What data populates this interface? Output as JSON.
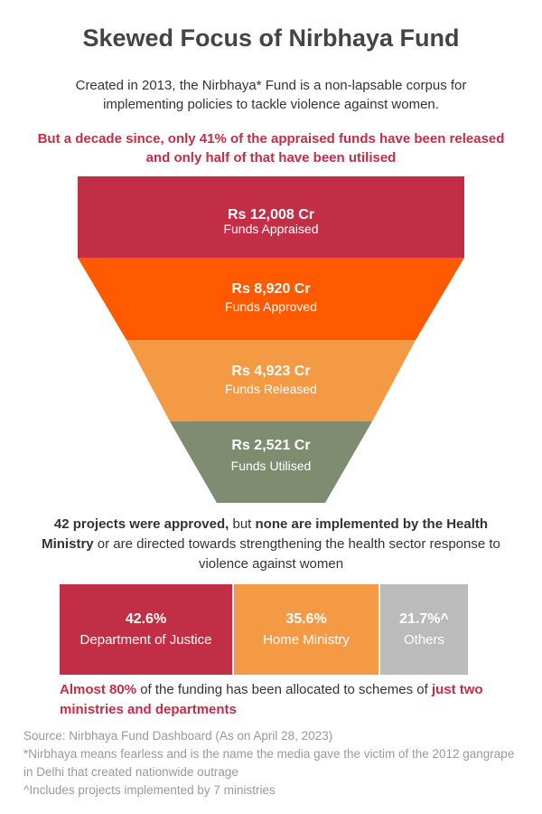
{
  "title": "Skewed Focus of Nirbhaya Fund",
  "intro": "Created in 2013, the Nirbhaya* Fund is a non-lapsable corpus for implementing policies to tackle violence against women.",
  "highlight": "But a decade since, only 41% of the appraised funds have been released and only half of that have been utilised",
  "colors": {
    "crimson": "#c22e45",
    "orange": "#ff5a00",
    "light_orange": "#f49a45",
    "sage": "#7f8c6f",
    "gray": "#bbbbbb",
    "note_gray": "#999999"
  },
  "chart_data": [
    {
      "type": "funnel",
      "stages": [
        {
          "value_text": "Rs 12,008 Cr",
          "label": "Funds Appraised",
          "value": 12008,
          "color": "#c22e45"
        },
        {
          "value_text": "Rs 8,920 Cr",
          "label": "Funds Approved",
          "value": 8920,
          "color": "#ff5a00"
        },
        {
          "value_text": "Rs 4,923 Cr",
          "label": "Funds Released",
          "value": 4923,
          "color": "#f49a45"
        },
        {
          "value_text": "Rs 2,521 Cr",
          "label": "Funds Utilised",
          "value": 2521,
          "color": "#7f8c6f"
        }
      ],
      "unit": "Rs Cr"
    },
    {
      "type": "bar",
      "orientation": "stacked-horizontal",
      "categories": [
        "Department of Justice",
        "Home Ministry",
        "Others"
      ],
      "values": [
        42.6,
        35.6,
        21.7
      ],
      "value_texts": [
        "42.6%",
        "35.6%",
        "21.7%^"
      ],
      "colors": [
        "#c22e45",
        "#f49a45",
        "#bbbbbb"
      ]
    }
  ],
  "projects": {
    "p1": "42 projects were approved,",
    "p2": " but ",
    "p3": "none are implemented by the Health Ministry",
    "p4": " or are directed towards strengthening the health sector response to violence against women"
  },
  "allocation": {
    "a1": "Almost 80%",
    "a2": " of the funding has been allocated to schemes of ",
    "a3": "just two ministries and departments"
  },
  "notes": {
    "source": "Source: Nirbhaya Fund Dashboard (As on April 28, 2023)",
    "asterisk": "*Nirbhaya means fearless and is the name the media gave the victim of the 2012 gangrape in Delhi that created nationwide outrage",
    "caret": "^Includes projects implemented by 7 ministries"
  }
}
